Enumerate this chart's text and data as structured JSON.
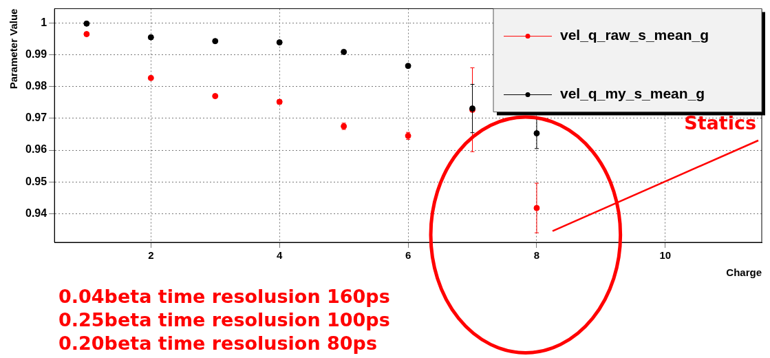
{
  "chart_data": {
    "type": "scatter",
    "xlabel": "Charge",
    "ylabel": "Parameter Value",
    "x": [
      1,
      2,
      3,
      4,
      5,
      6,
      7,
      8
    ],
    "xlim": [
      0.5,
      11.5
    ],
    "xticks": [
      2,
      4,
      6,
      8,
      10
    ],
    "ylim": [
      0.931,
      1.0045
    ],
    "yticks": [
      {
        "value": 0.94,
        "label": "0.94"
      },
      {
        "value": 0.95,
        "label": "0.95"
      },
      {
        "value": 0.96,
        "label": "0.96"
      },
      {
        "value": 0.97,
        "label": "0.97"
      },
      {
        "value": 0.98,
        "label": "0.98"
      },
      {
        "value": 0.99,
        "label": "0.99"
      },
      {
        "value": 1,
        "label": "1"
      }
    ],
    "series": [
      {
        "name": "vel_q_raw_s_mean_g",
        "color": "#ff0000",
        "values": [
          0.9965,
          0.9827,
          0.977,
          0.9752,
          0.9675,
          0.9645,
          0.9727,
          0.9418
        ],
        "errors": [
          null,
          null,
          null,
          0.0007,
          0.001,
          0.0011,
          0.0132,
          0.0078
        ]
      },
      {
        "name": "vel_q_my_s_mean_g",
        "color": "#000000",
        "values": [
          0.9998,
          0.9955,
          0.9943,
          0.9939,
          0.9909,
          0.9865,
          0.9731,
          0.9653
        ],
        "errors": [
          null,
          null,
          null,
          null,
          null,
          null,
          0.0076,
          0.0048
        ]
      }
    ],
    "grid": true,
    "legend": "top right",
    "marker": "circle",
    "annotations": [
      "0.04beta time resolusion 160ps",
      "0.25beta time resolusion 100ps",
      "0.20beta time resolusion 80ps",
      "Statics"
    ]
  }
}
